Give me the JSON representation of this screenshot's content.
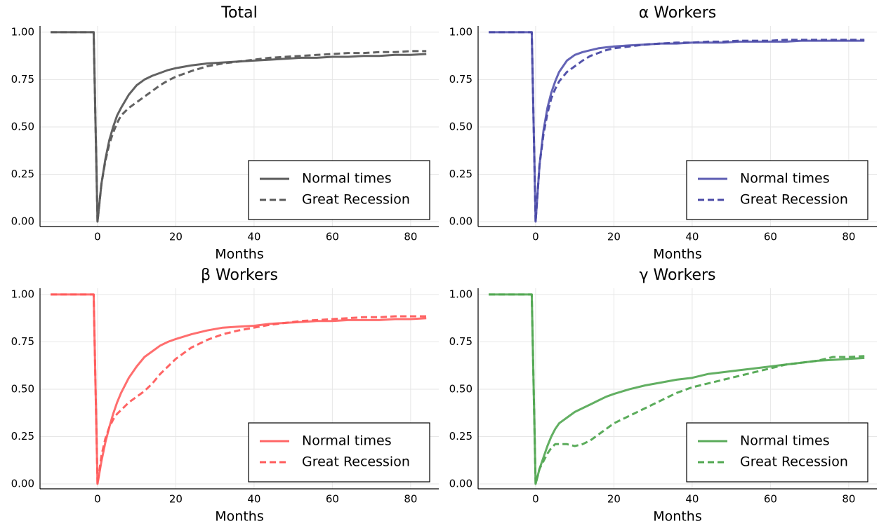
{
  "chart_data": [
    {
      "type": "line",
      "title": "Total",
      "x_label": "Months",
      "x": [
        -12,
        -1,
        0,
        1,
        2,
        3,
        4,
        5,
        6,
        8,
        10,
        12,
        14,
        16,
        18,
        20,
        24,
        28,
        32,
        36,
        40,
        44,
        48,
        52,
        56,
        60,
        64,
        68,
        72,
        76,
        80,
        84
      ],
      "series": [
        {
          "name": "Normal times",
          "color": "#5a5a5a",
          "dash": false,
          "values": [
            1,
            1,
            0,
            0.2,
            0.33,
            0.43,
            0.5,
            0.56,
            0.6,
            0.67,
            0.72,
            0.75,
            0.77,
            0.785,
            0.8,
            0.81,
            0.825,
            0.835,
            0.84,
            0.845,
            0.85,
            0.855,
            0.86,
            0.865,
            0.865,
            0.87,
            0.87,
            0.875,
            0.875,
            0.88,
            0.88,
            0.885
          ]
        },
        {
          "name": "Great Recession",
          "color": "#5a5a5a",
          "dash": true,
          "values": [
            1,
            1,
            0,
            0.2,
            0.32,
            0.41,
            0.47,
            0.52,
            0.56,
            0.6,
            0.63,
            0.66,
            0.69,
            0.72,
            0.745,
            0.765,
            0.795,
            0.82,
            0.835,
            0.845,
            0.855,
            0.865,
            0.87,
            0.875,
            0.88,
            0.885,
            0.89,
            0.89,
            0.895,
            0.895,
            0.9,
            0.9
          ]
        }
      ],
      "xlim": [
        -14.7,
        87.2
      ],
      "xticks": [
        0,
        20,
        40,
        60,
        80
      ],
      "ylim": [
        -0.026,
        1.033
      ],
      "yticks": [
        {
          "value": 0,
          "label": "0.00"
        },
        {
          "value": 0.25,
          "label": "0.25"
        },
        {
          "value": 0.5,
          "label": "0.50"
        },
        {
          "value": 0.75,
          "label": "0.75"
        },
        {
          "value": 1,
          "label": "1.00"
        }
      ],
      "grid": true,
      "legend": "lower right"
    },
    {
      "type": "line",
      "title": "α Workers",
      "x_label": "Months",
      "x": [
        -12,
        -1,
        0,
        1,
        2,
        3,
        4,
        5,
        6,
        8,
        10,
        12,
        14,
        16,
        18,
        20,
        24,
        28,
        32,
        36,
        40,
        44,
        48,
        52,
        56,
        60,
        64,
        68,
        72,
        76,
        80,
        84
      ],
      "series": [
        {
          "name": "Normal times",
          "color": "#5c5cb2",
          "dash": false,
          "values": [
            1,
            1,
            0,
            0.3,
            0.48,
            0.6,
            0.68,
            0.74,
            0.79,
            0.85,
            0.88,
            0.895,
            0.905,
            0.915,
            0.92,
            0.925,
            0.93,
            0.935,
            0.94,
            0.94,
            0.945,
            0.945,
            0.945,
            0.95,
            0.95,
            0.95,
            0.95,
            0.955,
            0.955,
            0.955,
            0.955,
            0.955
          ]
        },
        {
          "name": "Great Recession",
          "color": "#4a4aa6",
          "dash": true,
          "values": [
            1,
            1,
            0,
            0.3,
            0.46,
            0.57,
            0.65,
            0.7,
            0.74,
            0.79,
            0.82,
            0.85,
            0.875,
            0.89,
            0.905,
            0.915,
            0.925,
            0.935,
            0.94,
            0.945,
            0.945,
            0.95,
            0.95,
            0.955,
            0.955,
            0.955,
            0.96,
            0.96,
            0.96,
            0.96,
            0.96,
            0.96
          ]
        }
      ],
      "xlim": [
        -14.7,
        87.2
      ],
      "xticks": [
        0,
        20,
        40,
        60,
        80
      ],
      "ylim": [
        -0.026,
        1.033
      ],
      "yticks": [
        {
          "value": 0,
          "label": "0.00"
        },
        {
          "value": 0.25,
          "label": "0.25"
        },
        {
          "value": 0.5,
          "label": "0.50"
        },
        {
          "value": 0.75,
          "label": "0.75"
        },
        {
          "value": 1,
          "label": "1.00"
        }
      ],
      "grid": true,
      "legend": "lower right"
    },
    {
      "type": "line",
      "title": "β Workers",
      "x_label": "Months",
      "x": [
        -12,
        -1,
        0,
        1,
        2,
        3,
        4,
        5,
        6,
        8,
        10,
        12,
        14,
        16,
        18,
        20,
        24,
        28,
        32,
        36,
        40,
        44,
        48,
        52,
        56,
        60,
        64,
        68,
        72,
        76,
        80,
        84
      ],
      "series": [
        {
          "name": "Normal times",
          "color": "#ff6666",
          "dash": false,
          "values": [
            1,
            1,
            0,
            0.12,
            0.22,
            0.3,
            0.37,
            0.43,
            0.48,
            0.56,
            0.62,
            0.67,
            0.7,
            0.73,
            0.75,
            0.765,
            0.79,
            0.81,
            0.825,
            0.83,
            0.835,
            0.845,
            0.85,
            0.855,
            0.86,
            0.86,
            0.865,
            0.865,
            0.865,
            0.87,
            0.87,
            0.875
          ]
        },
        {
          "name": "Great Recession",
          "color": "#ff5c5c",
          "dash": true,
          "values": [
            1,
            1,
            0,
            0.15,
            0.24,
            0.3,
            0.34,
            0.37,
            0.39,
            0.43,
            0.46,
            0.49,
            0.53,
            0.58,
            0.62,
            0.66,
            0.72,
            0.76,
            0.79,
            0.81,
            0.825,
            0.84,
            0.85,
            0.86,
            0.865,
            0.87,
            0.875,
            0.88,
            0.88,
            0.885,
            0.885,
            0.885
          ]
        }
      ],
      "xlim": [
        -14.7,
        87.2
      ],
      "xticks": [
        0,
        20,
        40,
        60,
        80
      ],
      "ylim": [
        -0.026,
        1.033
      ],
      "yticks": [
        {
          "value": 0,
          "label": "0.00"
        },
        {
          "value": 0.25,
          "label": "0.25"
        },
        {
          "value": 0.5,
          "label": "0.50"
        },
        {
          "value": 0.75,
          "label": "0.75"
        },
        {
          "value": 1,
          "label": "1.00"
        }
      ],
      "grid": true,
      "legend": "lower right"
    },
    {
      "type": "line",
      "title": "γ Workers",
      "x_label": "Months",
      "x": [
        -12,
        -1,
        0,
        1,
        2,
        3,
        4,
        5,
        6,
        8,
        10,
        12,
        14,
        16,
        18,
        20,
        24,
        28,
        32,
        36,
        40,
        44,
        48,
        52,
        56,
        60,
        64,
        68,
        72,
        76,
        80,
        84
      ],
      "series": [
        {
          "name": "Normal times",
          "color": "#5aab5a",
          "dash": false,
          "values": [
            1,
            1,
            0,
            0.08,
            0.14,
            0.2,
            0.25,
            0.29,
            0.32,
            0.35,
            0.38,
            0.4,
            0.42,
            0.44,
            0.46,
            0.475,
            0.5,
            0.52,
            0.535,
            0.55,
            0.56,
            0.58,
            0.59,
            0.6,
            0.61,
            0.62,
            0.63,
            0.64,
            0.65,
            0.655,
            0.66,
            0.665
          ]
        },
        {
          "name": "Great Recession",
          "color": "#52a852",
          "dash": true,
          "values": [
            1,
            1,
            0,
            0.08,
            0.12,
            0.16,
            0.19,
            0.21,
            0.21,
            0.21,
            0.2,
            0.21,
            0.23,
            0.26,
            0.29,
            0.32,
            0.36,
            0.4,
            0.44,
            0.48,
            0.51,
            0.53,
            0.55,
            0.57,
            0.59,
            0.61,
            0.63,
            0.64,
            0.65,
            0.67,
            0.67,
            0.675
          ]
        }
      ],
      "xlim": [
        -14.7,
        87.2
      ],
      "xticks": [
        0,
        20,
        40,
        60,
        80
      ],
      "ylim": [
        -0.026,
        1.033
      ],
      "yticks": [
        {
          "value": 0,
          "label": "0.00"
        },
        {
          "value": 0.25,
          "label": "0.25"
        },
        {
          "value": 0.5,
          "label": "0.50"
        },
        {
          "value": 0.75,
          "label": "0.75"
        },
        {
          "value": 1,
          "label": "1.00"
        }
      ],
      "grid": true,
      "legend": "lower right"
    }
  ]
}
